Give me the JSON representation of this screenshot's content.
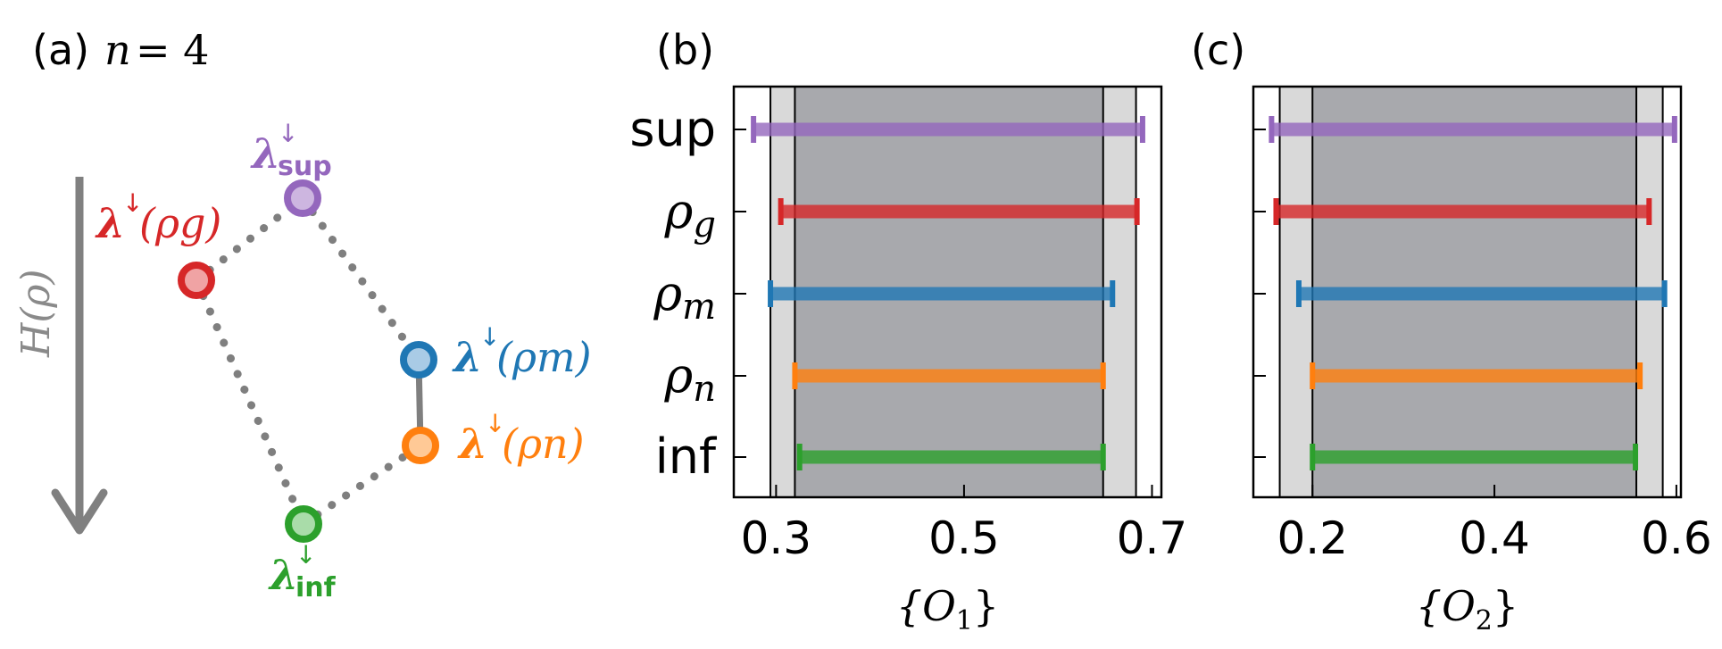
{
  "panel_a": {
    "label": "(a)",
    "n_label": "n",
    "n_eq": "= 4",
    "axis_label": "H(ρ)",
    "nodes": [
      {
        "key": "sup",
        "lam": "λ",
        "arrow": "↓",
        "sub": "sup",
        "paren": "",
        "color": "#9467bd",
        "fill": "#cdb6e0"
      },
      {
        "key": "rho_g",
        "lam": "λ",
        "arrow": "↓",
        "sub": "",
        "paren": "(ρg)",
        "color": "#d62728",
        "fill": "#f0a3a4"
      },
      {
        "key": "rho_m",
        "lam": "λ",
        "arrow": "↓",
        "sub": "",
        "paren": "(ρm)",
        "color": "#1f77b4",
        "fill": "#a9cbe6"
      },
      {
        "key": "rho_n",
        "lam": "λ",
        "arrow": "↓",
        "sub": "",
        "paren": "(ρn)",
        "color": "#ff7f0e",
        "fill": "#ffc996"
      },
      {
        "key": "inf",
        "lam": "λ",
        "arrow": "↓",
        "sub": "inf",
        "paren": "",
        "color": "#2ca02c",
        "fill": "#a9dca9"
      }
    ]
  },
  "chart_data": [
    {
      "type": "interval",
      "panel_label": "(b)",
      "xlabel": "{O1}",
      "xlabel_main": "{O",
      "xlabel_sub": "1",
      "xlabel_end": "}",
      "xlim": [
        0.255,
        0.71
      ],
      "xticks": [
        0.3,
        0.5,
        0.7
      ],
      "xtick_labels": [
        "0.3",
        "0.5",
        "0.7"
      ],
      "categories": [
        "sup",
        "ρg",
        "ρm",
        "ρn",
        "inf"
      ],
      "category_main": [
        "sup",
        "ρ",
        "ρ",
        "ρ",
        "inf"
      ],
      "category_sub": [
        "",
        "g",
        "m",
        "n",
        ""
      ],
      "colors": [
        "#9467bd",
        "#d62728",
        "#1f77b4",
        "#ff7f0e",
        "#2ca02c"
      ],
      "intervals": [
        [
          0.276,
          0.69
        ],
        [
          0.305,
          0.684
        ],
        [
          0.294,
          0.658
        ],
        [
          0.32,
          0.648
        ],
        [
          0.325,
          0.648
        ]
      ],
      "outer_band": [
        0.294,
        0.683
      ],
      "inner_band": [
        0.32,
        0.648
      ]
    },
    {
      "type": "interval",
      "panel_label": "(c)",
      "xlabel": "{O2}",
      "xlabel_main": "{O",
      "xlabel_sub": "2",
      "xlabel_end": "}",
      "xlim": [
        0.135,
        0.605
      ],
      "xticks": [
        0.2,
        0.4,
        0.6
      ],
      "xtick_labels": [
        "0.2",
        "0.4",
        "0.6"
      ],
      "categories": [
        "sup",
        "ρg",
        "ρm",
        "ρn",
        "inf"
      ],
      "category_main": [
        "sup",
        "ρ",
        "ρ",
        "ρ",
        "inf"
      ],
      "category_sub": [
        "",
        "g",
        "m",
        "n",
        ""
      ],
      "colors": [
        "#9467bd",
        "#d62728",
        "#1f77b4",
        "#ff7f0e",
        "#2ca02c"
      ],
      "intervals": [
        [
          0.155,
          0.598
        ],
        [
          0.16,
          0.57
        ],
        [
          0.185,
          0.587
        ],
        [
          0.2,
          0.56
        ],
        [
          0.2,
          0.555
        ]
      ],
      "outer_band": [
        0.164,
        0.585
      ],
      "inner_band": [
        0.2,
        0.556
      ]
    }
  ]
}
